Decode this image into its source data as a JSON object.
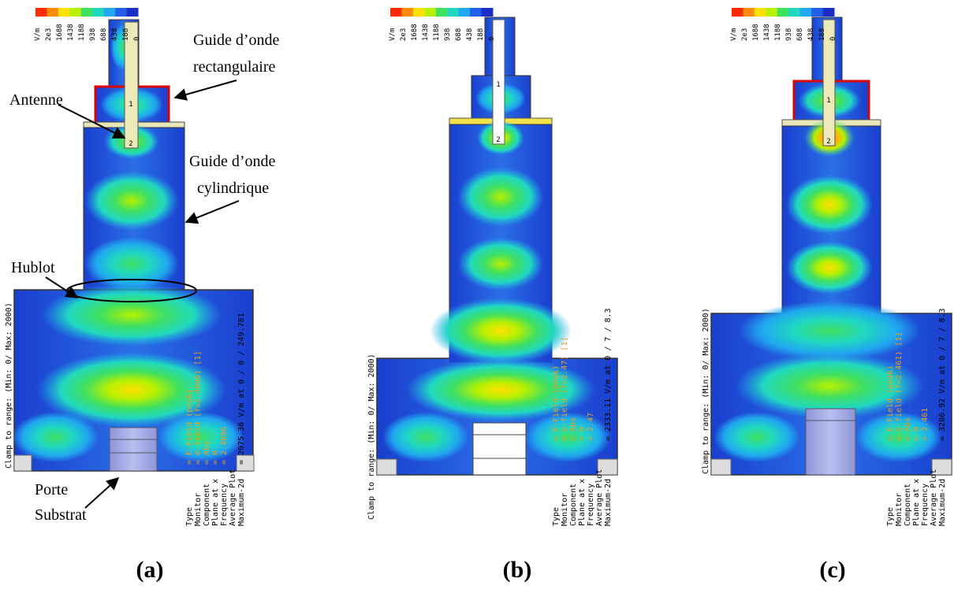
{
  "colorbar": {
    "unit": "V/m",
    "ticks": [
      "2e3",
      "1688",
      "1438",
      "1188",
      "938",
      "688",
      "438",
      "188",
      "0"
    ],
    "colors": [
      "#ff2a00",
      "#ff8c00",
      "#ffe000",
      "#b8f000",
      "#40e060",
      "#20d8c0",
      "#20a8f0",
      "#2060e8",
      "#1a2fc8"
    ]
  },
  "annotations": {
    "rect_guide_1": "Guide d’onde",
    "rect_guide_2": "rectangulaire",
    "antenna": "Antenne",
    "cyl_guide_1": "Guide d’onde",
    "cyl_guide_2": "cylindrique",
    "porthole": "Hublot",
    "substrate_1": "Porte",
    "substrate_2": "Substrat"
  },
  "panels": [
    {
      "label": "(a)",
      "clamp": "Clamp to range: (Min: 0/ Max: 2000)",
      "info_keys": [
        "Type",
        "Monitor",
        "Component",
        "Plane at x",
        "Frequency",
        "Average Plot",
        "Maximum-2d"
      ],
      "info_values": [
        "= E-Field (peak)",
        "= e-field (f=2.4696) [1]",
        "= Abs",
        "= 0",
        "= 2.4696",
        "",
        "= 2075.36 V/m at 0 / 0 / 249.781"
      ]
    },
    {
      "label": "(b)",
      "clamp": "Clamp to range: (Min: 0/ Max: 2000)",
      "info_keys": [
        "Type",
        "Monitor",
        "Component",
        "Plane at x",
        "Frequency",
        "Average Plot",
        "Maximum-2d"
      ],
      "info_values": [
        "= E-Field (peak)",
        "= e-field (f=2.47) [1]",
        "= Abs",
        "= 0",
        "= 2.47",
        "",
        "= 2333.11 V/m at 0 / 7 / 8.3"
      ]
    },
    {
      "label": "(c)",
      "clamp": "Clamp to range: (Min: 0/ Max: 2000)",
      "info_keys": [
        "Type",
        "Monitor",
        "Component",
        "Plane at x",
        "Frequency",
        "Average Plot",
        "Maximum-2d"
      ],
      "info_values": [
        "= E-Field (peak)",
        "= e-field (f=2.461) [1]",
        "= Abs",
        "= 0",
        "= 2.461",
        "",
        "= 3206.92 V/m at 0 / 7 / 8.3"
      ]
    }
  ],
  "port_labels": [
    "1",
    "2"
  ]
}
